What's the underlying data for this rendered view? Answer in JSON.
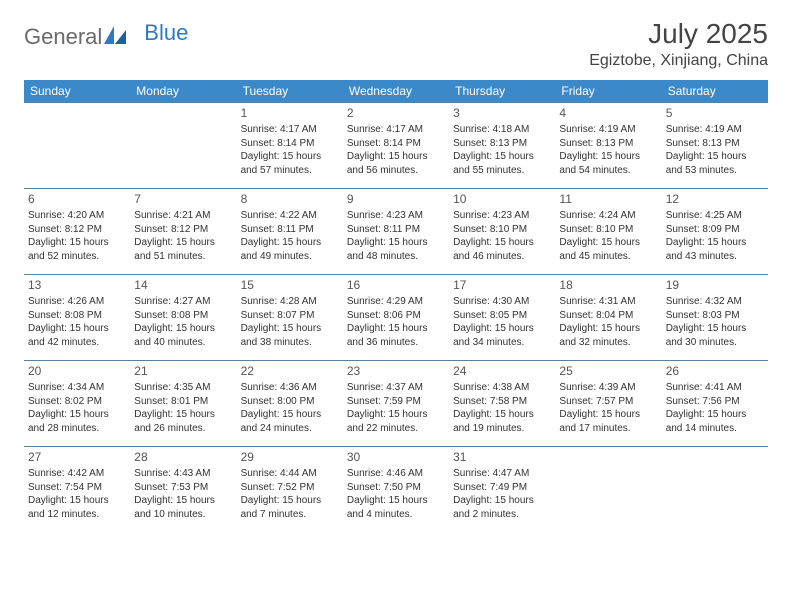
{
  "brand": {
    "part1": "General",
    "part2": "Blue"
  },
  "title": "July 2025",
  "location": "Egiztobe, Xinjiang, China",
  "colors": {
    "header_bg": "#3b89c9",
    "header_text": "#ffffff",
    "border": "#5a7fa3",
    "brand_gray": "#6b6b6b",
    "brand_blue": "#2f78c4",
    "text": "#333333",
    "background": "#ffffff"
  },
  "dayNames": [
    "Sunday",
    "Monday",
    "Tuesday",
    "Wednesday",
    "Thursday",
    "Friday",
    "Saturday"
  ],
  "weeks": [
    [
      null,
      null,
      {
        "n": "1",
        "sr": "4:17 AM",
        "ss": "8:14 PM",
        "dl": "15 hours and 57 minutes."
      },
      {
        "n": "2",
        "sr": "4:17 AM",
        "ss": "8:14 PM",
        "dl": "15 hours and 56 minutes."
      },
      {
        "n": "3",
        "sr": "4:18 AM",
        "ss": "8:13 PM",
        "dl": "15 hours and 55 minutes."
      },
      {
        "n": "4",
        "sr": "4:19 AM",
        "ss": "8:13 PM",
        "dl": "15 hours and 54 minutes."
      },
      {
        "n": "5",
        "sr": "4:19 AM",
        "ss": "8:13 PM",
        "dl": "15 hours and 53 minutes."
      }
    ],
    [
      {
        "n": "6",
        "sr": "4:20 AM",
        "ss": "8:12 PM",
        "dl": "15 hours and 52 minutes."
      },
      {
        "n": "7",
        "sr": "4:21 AM",
        "ss": "8:12 PM",
        "dl": "15 hours and 51 minutes."
      },
      {
        "n": "8",
        "sr": "4:22 AM",
        "ss": "8:11 PM",
        "dl": "15 hours and 49 minutes."
      },
      {
        "n": "9",
        "sr": "4:23 AM",
        "ss": "8:11 PM",
        "dl": "15 hours and 48 minutes."
      },
      {
        "n": "10",
        "sr": "4:23 AM",
        "ss": "8:10 PM",
        "dl": "15 hours and 46 minutes."
      },
      {
        "n": "11",
        "sr": "4:24 AM",
        "ss": "8:10 PM",
        "dl": "15 hours and 45 minutes."
      },
      {
        "n": "12",
        "sr": "4:25 AM",
        "ss": "8:09 PM",
        "dl": "15 hours and 43 minutes."
      }
    ],
    [
      {
        "n": "13",
        "sr": "4:26 AM",
        "ss": "8:08 PM",
        "dl": "15 hours and 42 minutes."
      },
      {
        "n": "14",
        "sr": "4:27 AM",
        "ss": "8:08 PM",
        "dl": "15 hours and 40 minutes."
      },
      {
        "n": "15",
        "sr": "4:28 AM",
        "ss": "8:07 PM",
        "dl": "15 hours and 38 minutes."
      },
      {
        "n": "16",
        "sr": "4:29 AM",
        "ss": "8:06 PM",
        "dl": "15 hours and 36 minutes."
      },
      {
        "n": "17",
        "sr": "4:30 AM",
        "ss": "8:05 PM",
        "dl": "15 hours and 34 minutes."
      },
      {
        "n": "18",
        "sr": "4:31 AM",
        "ss": "8:04 PM",
        "dl": "15 hours and 32 minutes."
      },
      {
        "n": "19",
        "sr": "4:32 AM",
        "ss": "8:03 PM",
        "dl": "15 hours and 30 minutes."
      }
    ],
    [
      {
        "n": "20",
        "sr": "4:34 AM",
        "ss": "8:02 PM",
        "dl": "15 hours and 28 minutes."
      },
      {
        "n": "21",
        "sr": "4:35 AM",
        "ss": "8:01 PM",
        "dl": "15 hours and 26 minutes."
      },
      {
        "n": "22",
        "sr": "4:36 AM",
        "ss": "8:00 PM",
        "dl": "15 hours and 24 minutes."
      },
      {
        "n": "23",
        "sr": "4:37 AM",
        "ss": "7:59 PM",
        "dl": "15 hours and 22 minutes."
      },
      {
        "n": "24",
        "sr": "4:38 AM",
        "ss": "7:58 PM",
        "dl": "15 hours and 19 minutes."
      },
      {
        "n": "25",
        "sr": "4:39 AM",
        "ss": "7:57 PM",
        "dl": "15 hours and 17 minutes."
      },
      {
        "n": "26",
        "sr": "4:41 AM",
        "ss": "7:56 PM",
        "dl": "15 hours and 14 minutes."
      }
    ],
    [
      {
        "n": "27",
        "sr": "4:42 AM",
        "ss": "7:54 PM",
        "dl": "15 hours and 12 minutes."
      },
      {
        "n": "28",
        "sr": "4:43 AM",
        "ss": "7:53 PM",
        "dl": "15 hours and 10 minutes."
      },
      {
        "n": "29",
        "sr": "4:44 AM",
        "ss": "7:52 PM",
        "dl": "15 hours and 7 minutes."
      },
      {
        "n": "30",
        "sr": "4:46 AM",
        "ss": "7:50 PM",
        "dl": "15 hours and 4 minutes."
      },
      {
        "n": "31",
        "sr": "4:47 AM",
        "ss": "7:49 PM",
        "dl": "15 hours and 2 minutes."
      },
      null,
      null
    ]
  ],
  "labels": {
    "sunrise": "Sunrise:",
    "sunset": "Sunset:",
    "daylight": "Daylight:"
  }
}
